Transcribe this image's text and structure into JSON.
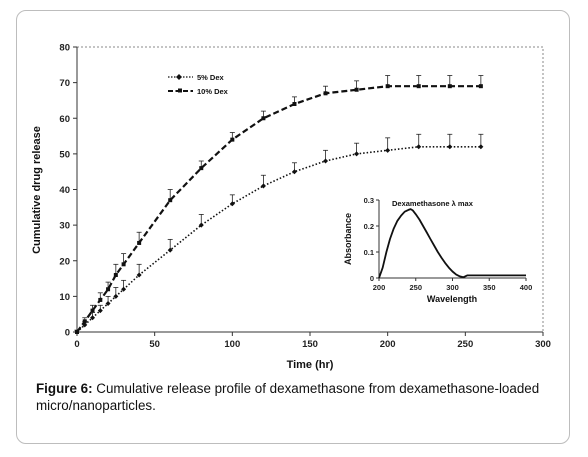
{
  "chart_data": [
    {
      "type": "line",
      "title": "",
      "xlabel": "Time (hr)",
      "ylabel": "Cumulative drug release",
      "xlim": [
        0,
        300
      ],
      "ylim": [
        0,
        80
      ],
      "x_ticks": [
        "0",
        "50",
        "100",
        "150",
        "200",
        "250",
        "300"
      ],
      "y_ticks": [
        "0",
        "10",
        "20",
        "30",
        "40",
        "50",
        "60",
        "70",
        "80"
      ],
      "legend_position": "top-left",
      "grid": false,
      "series": [
        {
          "name": "5% Dex",
          "style": "dotted",
          "x": [
            0,
            5,
            10,
            15,
            20,
            25,
            30,
            40,
            60,
            80,
            100,
            120,
            140,
            160,
            180,
            200,
            220,
            240,
            260
          ],
          "y": [
            0,
            2,
            4,
            6,
            8,
            10,
            12,
            16,
            23,
            30,
            36,
            41,
            45,
            48,
            50,
            51,
            52,
            52,
            52
          ],
          "err": [
            0.5,
            1,
            1.5,
            1.5,
            2,
            2.5,
            2.5,
            3,
            3,
            3,
            2.5,
            3,
            2.5,
            3,
            3,
            3.5,
            3.5,
            3.5,
            3.5
          ]
        },
        {
          "name": "10% Dex",
          "style": "dashed",
          "x": [
            0,
            5,
            10,
            15,
            20,
            25,
            30,
            40,
            60,
            80,
            100,
            120,
            140,
            160,
            180,
            200,
            220,
            240,
            260
          ],
          "y": [
            0,
            3,
            6,
            9,
            12,
            16,
            19,
            25,
            37,
            46,
            54,
            60,
            64,
            67,
            68,
            69,
            69,
            69,
            69
          ],
          "err": [
            0.5,
            1,
            1.5,
            2,
            2,
            3,
            3,
            3,
            3,
            2,
            2,
            2,
            2,
            2,
            2.5,
            3,
            3,
            3,
            3
          ]
        }
      ]
    },
    {
      "type": "line",
      "title": "Dexamethasone λ max",
      "xlabel": "Wavelength",
      "ylabel": "Absorbance",
      "xlim": [
        200,
        400
      ],
      "ylim": [
        0,
        0.3
      ],
      "x_ticks": [
        "200",
        "250",
        "300",
        "350",
        "400"
      ],
      "y_ticks": [
        "0",
        "0.1",
        "0.2",
        "0.3"
      ],
      "series": [
        {
          "name": "",
          "x": [
            200,
            205,
            210,
            215,
            220,
            225,
            230,
            235,
            240,
            243,
            246,
            250,
            255,
            260,
            265,
            270,
            275,
            280,
            285,
            290,
            295,
            300,
            305,
            310,
            315,
            320,
            330,
            340,
            360,
            380,
            400
          ],
          "y": [
            0,
            0.04,
            0.1,
            0.15,
            0.19,
            0.22,
            0.24,
            0.255,
            0.262,
            0.265,
            0.26,
            0.245,
            0.225,
            0.2,
            0.175,
            0.15,
            0.125,
            0.1,
            0.078,
            0.058,
            0.04,
            0.025,
            0.013,
            0.006,
            0.003,
            0.01,
            0.01,
            0.01,
            0.01,
            0.01,
            0.01
          ]
        }
      ]
    }
  ],
  "caption": {
    "label": "Figure 6:",
    "text": " Cumulative release profile of dexamethasone from dexamethasone-loaded micro/nanoparticles."
  }
}
